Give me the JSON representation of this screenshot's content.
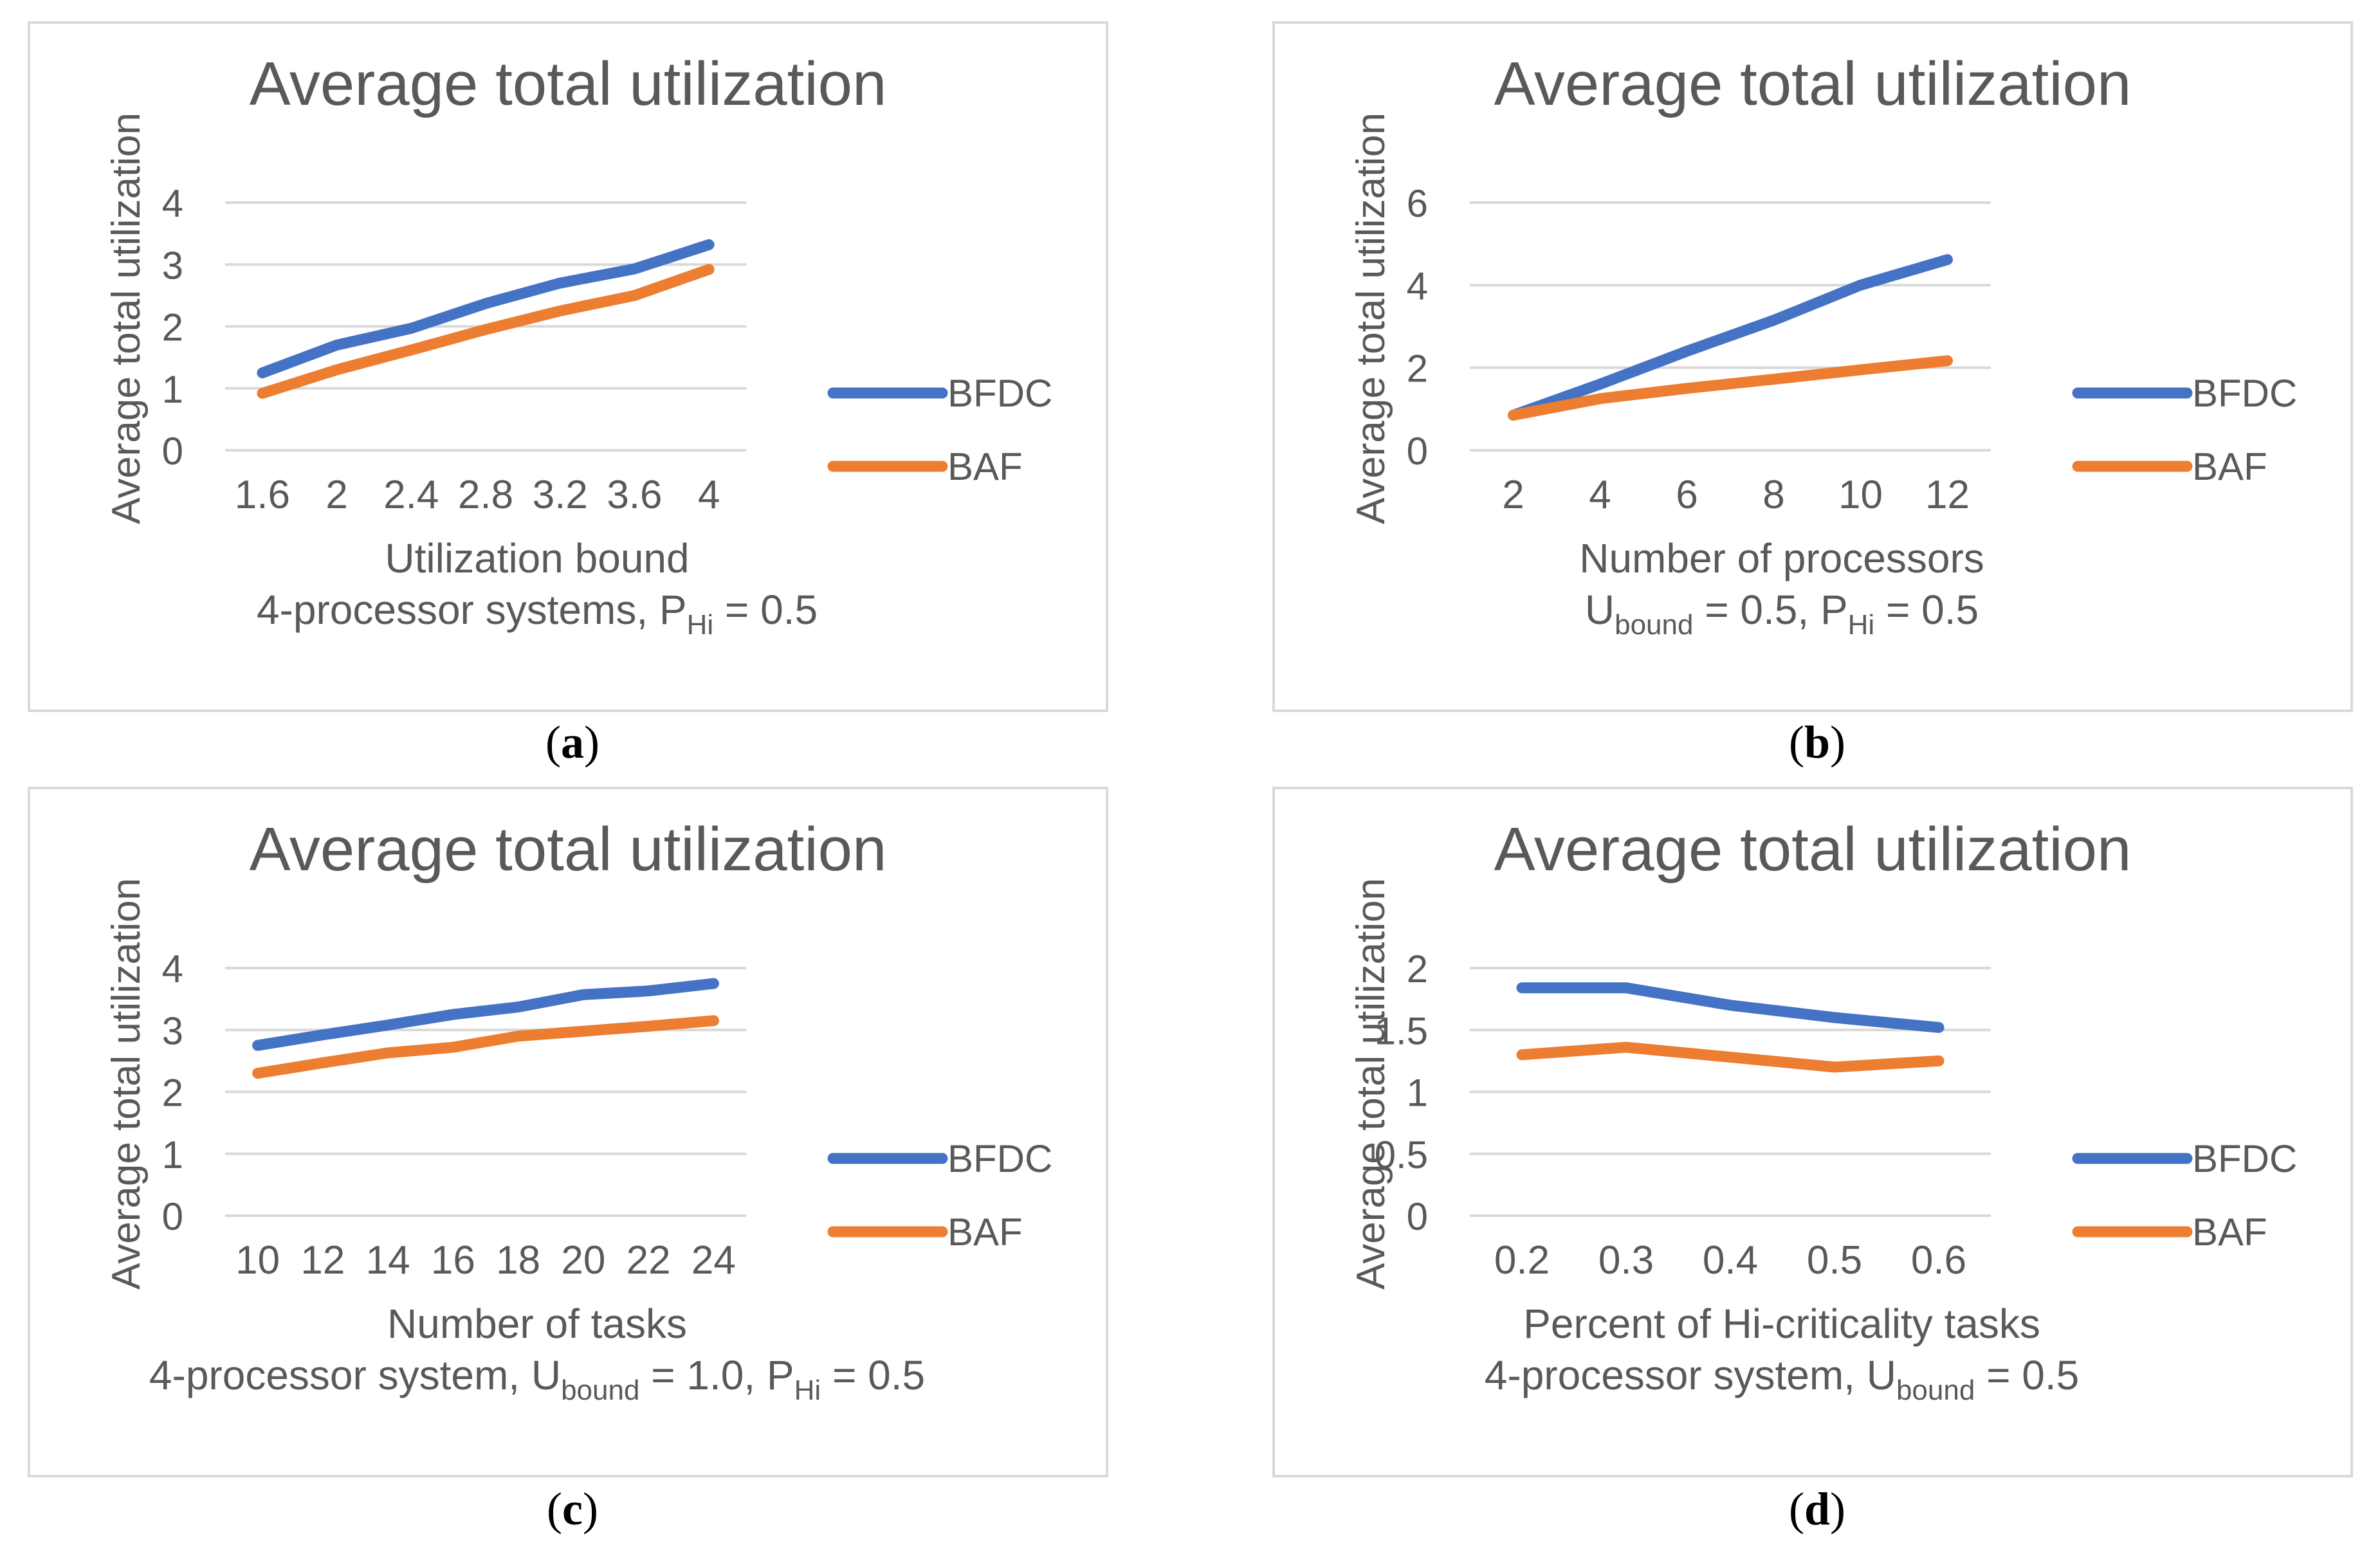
{
  "colors": {
    "bfdc": "#4472C4",
    "baf": "#ED7D31",
    "text": "#595959",
    "grid": "#D9D9D9",
    "frame": "#D9D9D9"
  },
  "chart_data": [
    {
      "panel": "a",
      "caption": "a",
      "type": "line",
      "title": "Average total utilization",
      "ylabel": "Average total utilization",
      "xlabel": "Utilization bound",
      "subtitle": {
        "pre": "4-processor systems, P",
        "sub": "Hi",
        "post": " = 0.5"
      },
      "categories": [
        "1.6",
        "2",
        "2.4",
        "2.8",
        "3.2",
        "3.6",
        "4"
      ],
      "yticks": [
        "0",
        "1",
        "2",
        "3",
        "4"
      ],
      "ylim": [
        0,
        4
      ],
      "legend_position": "right",
      "series": [
        {
          "name": "BFDC",
          "values": [
            1.25,
            1.7,
            1.97,
            2.37,
            2.7,
            2.93,
            3.32
          ]
        },
        {
          "name": "BAF",
          "values": [
            0.92,
            1.3,
            1.62,
            1.95,
            2.25,
            2.5,
            2.92
          ]
        }
      ]
    },
    {
      "panel": "b",
      "caption": "b",
      "type": "line",
      "title": "Average total utilization",
      "ylabel": "Average total utilization",
      "xlabel": "Number of processors",
      "subtitle": {
        "pre": "U",
        "sub": "bound",
        "mid": " = 0.5, P",
        "sub2": "Hi",
        "post": " = 0.5"
      },
      "categories": [
        "2",
        "4",
        "6",
        "8",
        "10",
        "12"
      ],
      "yticks": [
        "0",
        "2",
        "4",
        "6"
      ],
      "ylim": [
        0,
        6
      ],
      "legend_position": "right",
      "series": [
        {
          "name": "BFDC",
          "values": [
            0.85,
            1.6,
            2.4,
            3.15,
            4.0,
            4.62
          ]
        },
        {
          "name": "BAF",
          "values": [
            0.85,
            1.25,
            1.5,
            1.72,
            1.95,
            2.17
          ]
        }
      ]
    },
    {
      "panel": "c",
      "caption": "c",
      "type": "line",
      "title": "Average total utilization",
      "ylabel": "Average total utilization",
      "xlabel": "Number of tasks",
      "subtitle": {
        "pre": "4-processor system, U",
        "sub": "bound",
        "mid": " = 1.0, P",
        "sub2": "Hi",
        "post": " = 0.5"
      },
      "categories": [
        "10",
        "12",
        "14",
        "16",
        "18",
        "20",
        "22",
        "24"
      ],
      "yticks": [
        "0",
        "1",
        "2",
        "3",
        "4"
      ],
      "ylim": [
        0,
        4
      ],
      "legend_position": "right",
      "series": [
        {
          "name": "BFDC",
          "values": [
            2.75,
            2.92,
            3.08,
            3.25,
            3.37,
            3.57,
            3.63,
            3.75
          ]
        },
        {
          "name": "BAF",
          "values": [
            2.3,
            2.47,
            2.63,
            2.72,
            2.9,
            2.98,
            3.06,
            3.15
          ]
        }
      ]
    },
    {
      "panel": "d",
      "caption": "d",
      "type": "line",
      "title": "Average total utilization",
      "ylabel": "Average total utilization",
      "xlabel": "Percent of Hi-criticality tasks",
      "subtitle": {
        "pre": "4-processor system, U",
        "sub": "bound",
        "post": " = 0.5"
      },
      "categories": [
        "0.2",
        "0.3",
        "0.4",
        "0.5",
        "0.6"
      ],
      "yticks": [
        "0",
        "0.5",
        "1",
        "1.5",
        "2"
      ],
      "ylim": [
        0,
        2
      ],
      "legend_position": "right",
      "series": [
        {
          "name": "BFDC",
          "values": [
            1.84,
            1.84,
            1.7,
            1.6,
            1.52
          ]
        },
        {
          "name": "BAF",
          "values": [
            1.3,
            1.36,
            1.28,
            1.2,
            1.25
          ]
        }
      ]
    }
  ]
}
